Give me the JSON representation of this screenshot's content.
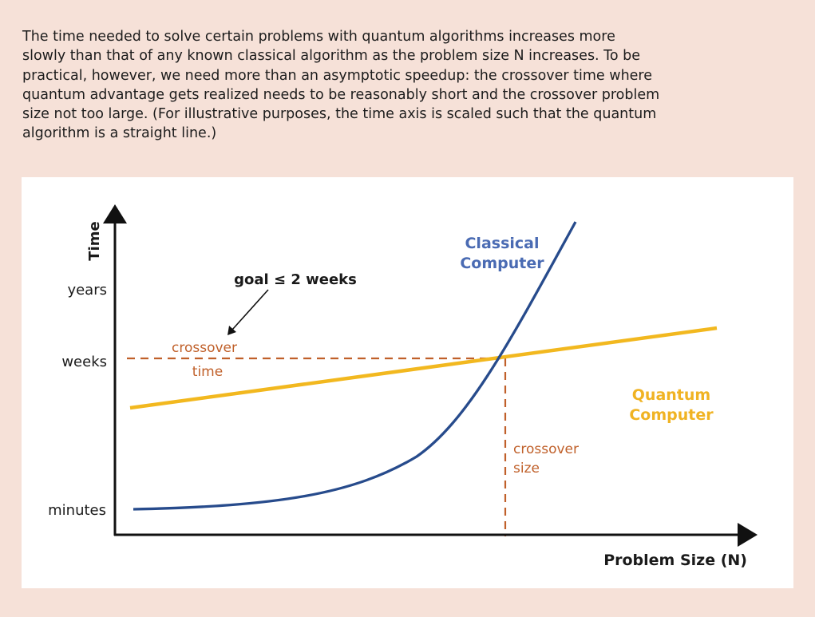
{
  "caption": "The time needed to solve certain problems with quantum algorithms increases more slowly than that of any known classical algorithm as the problem size N increases. To be practical, however, we need more than an asymptotic speedup: the crossover time where quantum advantage gets realized needs to be reasonably short and the crossover problem size not too large. (For illustrative purposes, the time axis is scaled such that the quantum algorithm is a straight line.)",
  "colors": {
    "classical": "#274b8c",
    "quantum": "#f2b81f",
    "crossover": "#c0602a",
    "axis": "#111111",
    "background": "#f6e1d8",
    "panel": "#ffffff"
  },
  "chart_data": {
    "type": "line",
    "xlabel": "Problem Size (N)",
    "ylabel": "Time",
    "y_ticks": [
      "years",
      "weeks",
      "minutes"
    ],
    "series": [
      {
        "name": "Classical Computer",
        "label_lines": [
          "Classical",
          "Computer"
        ]
      },
      {
        "name": "Quantum Computer",
        "label_lines": [
          "Quantum",
          "Computer"
        ]
      }
    ],
    "annotations": {
      "goal": "goal ≤ 2 weeks",
      "crossover_time": [
        "crossover",
        "time"
      ],
      "crossover_size": [
        "crossover",
        "size"
      ]
    }
  }
}
